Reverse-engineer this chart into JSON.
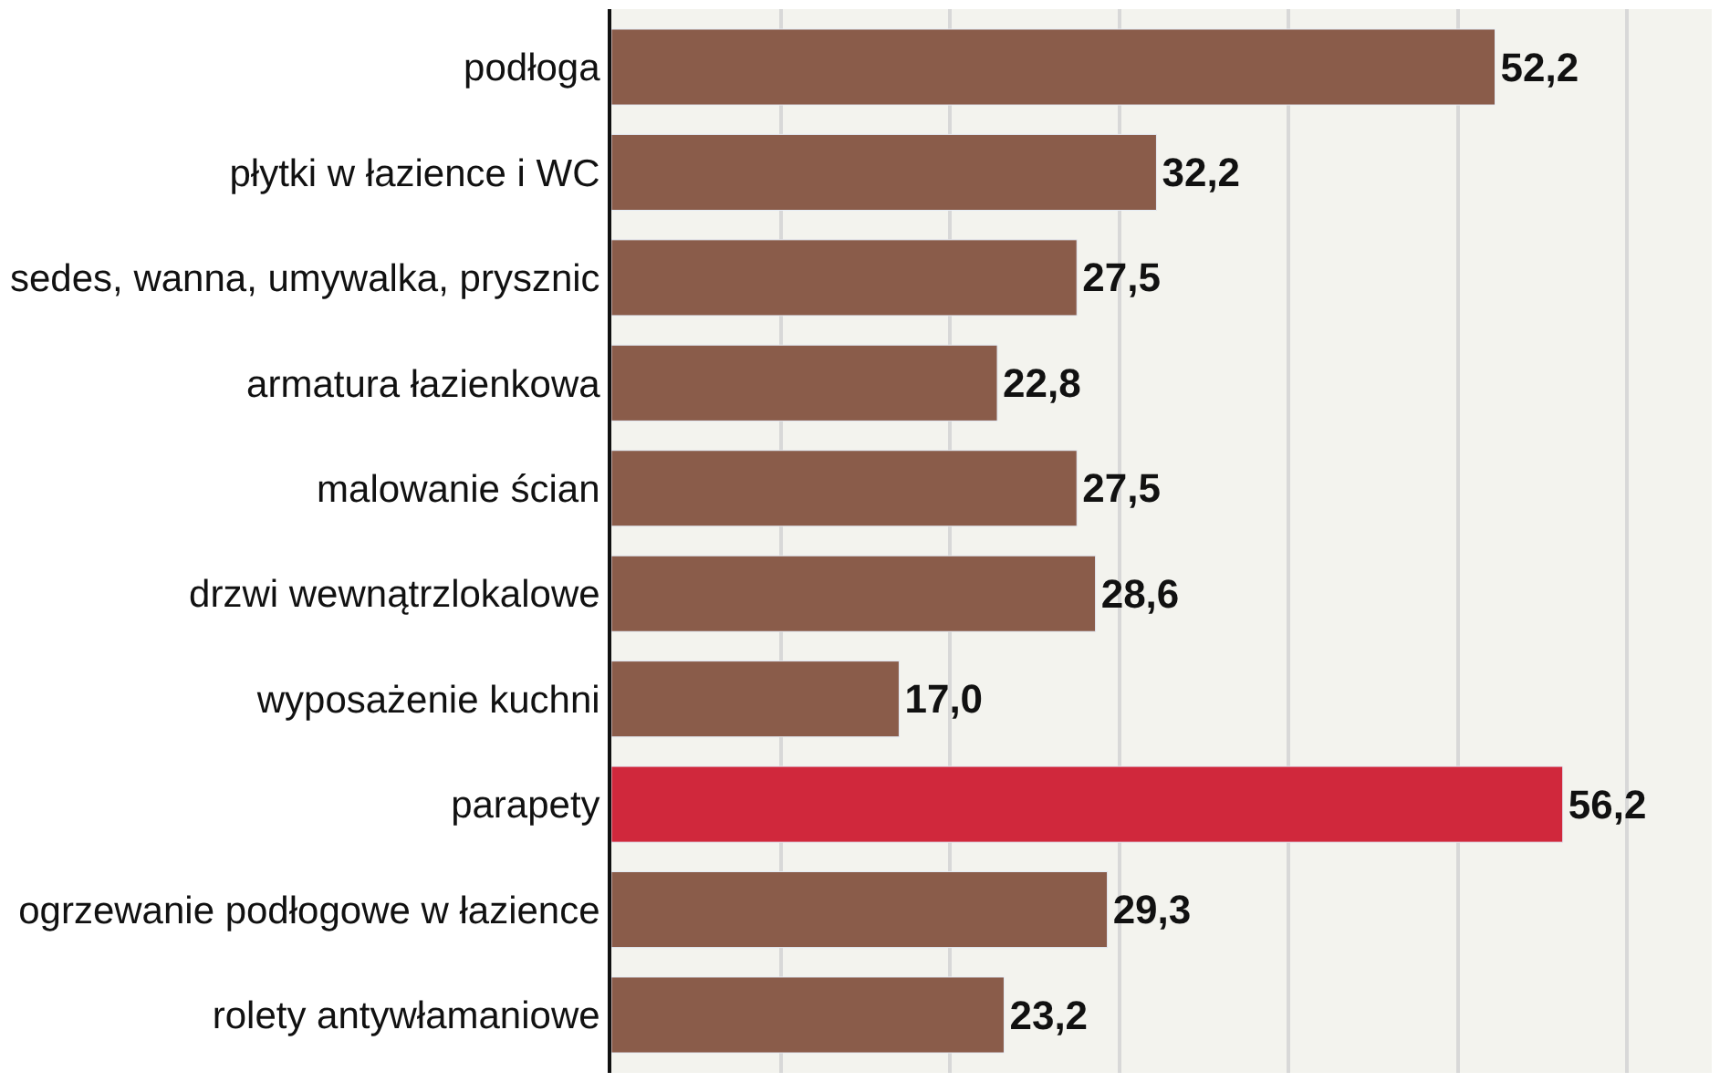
{
  "chart_data": {
    "type": "bar",
    "orientation": "horizontal",
    "categories": [
      "podłoga",
      "płytki w łazience i WC",
      "sedes, wanna, umywalka, prysznic",
      "armatura łazienkowa",
      "malowanie ścian",
      "drzwi wewnątrzlokalowe",
      "wyposażenie kuchni",
      "parapety",
      "ogrzewanie podłogowe w łazience",
      "rolety antywłamaniowe"
    ],
    "values": [
      52.2,
      32.2,
      27.5,
      22.8,
      27.5,
      28.6,
      17.0,
      56.2,
      29.3,
      23.2
    ],
    "value_labels": [
      "52,2",
      "32,2",
      "27,5",
      "22,8",
      "27,5",
      "28,6",
      "17,0",
      "56,2",
      "29,3",
      "23,2"
    ],
    "colors": [
      "#8a5c4a",
      "#8a5c4a",
      "#8a5c4a",
      "#8a5c4a",
      "#8a5c4a",
      "#8a5c4a",
      "#8a5c4a",
      "#d0283c",
      "#8a5c4a",
      "#8a5c4a"
    ],
    "xlim": [
      0,
      65
    ],
    "xticks": [
      {
        "value": 10,
        "label": null
      },
      {
        "value": 20,
        "label": null
      },
      {
        "value": 30,
        "label": null
      },
      {
        "value": 40,
        "label": null
      },
      {
        "value": 50,
        "label": null
      },
      {
        "value": 60,
        "label": null
      }
    ],
    "grid": "x",
    "tick_labels": "y"
  }
}
